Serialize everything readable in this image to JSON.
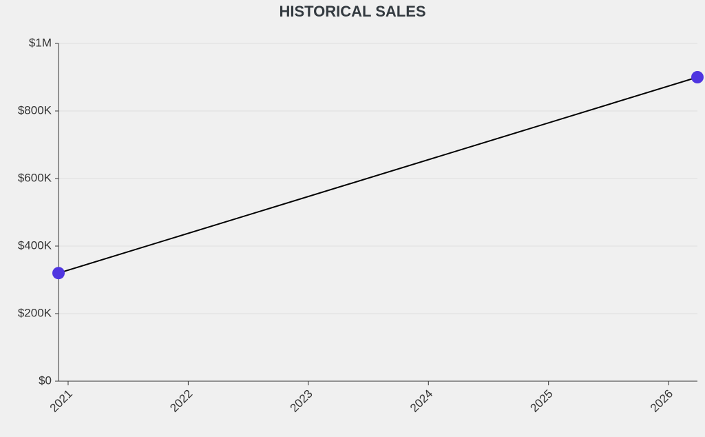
{
  "chart_data": {
    "type": "line",
    "title": "HISTORICAL SALES",
    "x": [
      2020.92,
      2026.24
    ],
    "values": [
      320000,
      900000
    ],
    "color": "#000000",
    "marker_color": "#4f35e0",
    "xlim": [
      2020.92,
      2026.24
    ],
    "xticks": [
      2021,
      2022,
      2023,
      2024,
      2025,
      2026
    ],
    "ylim": [
      0,
      1000000
    ],
    "yticks": [
      {
        "value": 0,
        "label": "$0"
      },
      {
        "value": 200000,
        "label": "$200K"
      },
      {
        "value": 400000,
        "label": "$400K"
      },
      {
        "value": 600000,
        "label": "$600K"
      },
      {
        "value": 800000,
        "label": "$800K"
      },
      {
        "value": 1000000,
        "label": "$1M"
      }
    ],
    "grid": true
  }
}
